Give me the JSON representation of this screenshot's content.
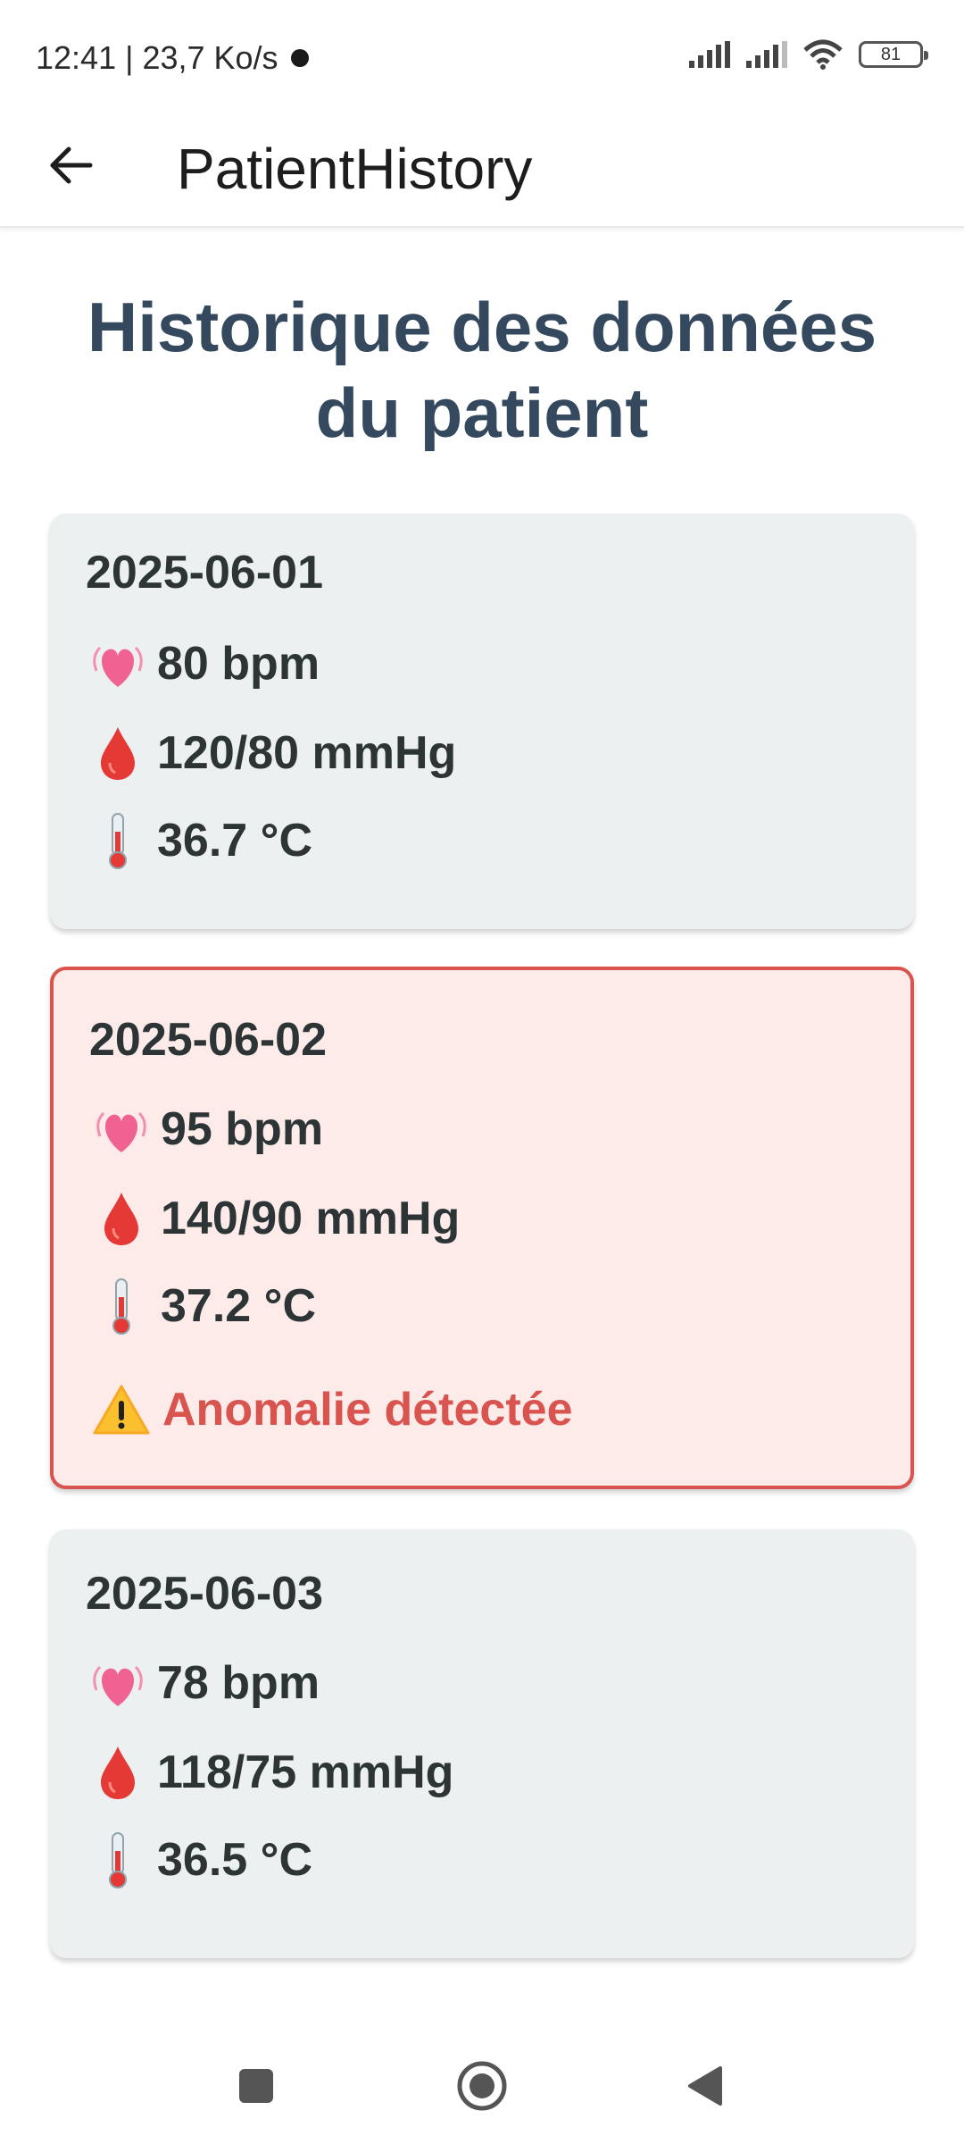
{
  "status_bar": {
    "time_speed": "12:41 | 23,7 Ko/s",
    "battery": "81"
  },
  "app_bar": {
    "title": "PatientHistory"
  },
  "heading": "Historique des données du patient",
  "records": [
    {
      "date": "2025-06-01",
      "heart_rate": "80 bpm",
      "blood_pressure": "120/80 mmHg",
      "temperature": "36.7 °C",
      "anomaly": false
    },
    {
      "date": "2025-06-02",
      "heart_rate": "95 bpm",
      "blood_pressure": "140/90 mmHg",
      "temperature": "37.2 °C",
      "anomaly": true,
      "anomaly_text": "Anomalie détectée"
    },
    {
      "date": "2025-06-03",
      "heart_rate": "78 bpm",
      "blood_pressure": "118/75 mmHg",
      "temperature": "36.5 °C",
      "anomaly": false
    }
  ],
  "icons": {
    "heart": "heart-icon",
    "blood": "blood-drop-icon",
    "temperature": "thermometer-icon",
    "warning": "warning-icon"
  },
  "colors": {
    "heading": "#34495e",
    "card_bg": "#ecf0f1",
    "anomaly_bg": "#fdebea",
    "anomaly_accent": "#d9534f"
  }
}
